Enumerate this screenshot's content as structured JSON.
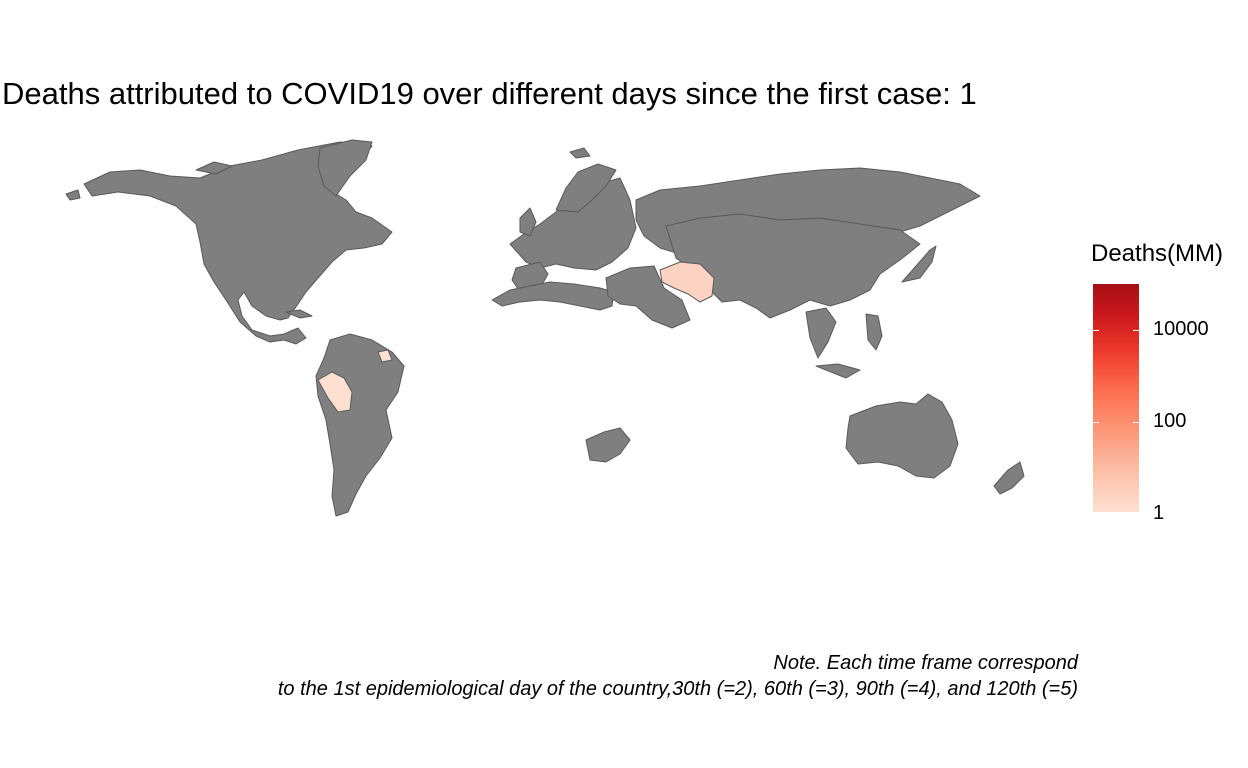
{
  "title": "Deaths attributed to COVID19 over different days since the first case: 1",
  "legend": {
    "title": "Deaths(MM)",
    "scale": "log",
    "low_color": "#fee0d2",
    "high_color": "#a50f15",
    "breaks": [
      "10000",
      "100",
      "1"
    ]
  },
  "colors": {
    "no_data": "#7f7f7f",
    "border": "#5a5a5a"
  },
  "highlighted_countries": [
    "Iran",
    "Peru",
    "Guyana"
  ],
  "caption": {
    "line1": "Note. Each time frame correspond",
    "line2": "to the 1st epidemiological day of the country,30th (=2), 60th (=3), 90th (=4), and 120th (=5)"
  }
}
